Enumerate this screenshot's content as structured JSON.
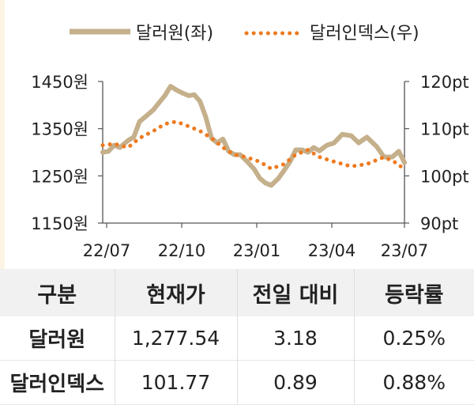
{
  "chart_data": {
    "type": "line",
    "legend_position": "top",
    "x_ticks": [
      "22/07",
      "22/10",
      "23/01",
      "23/04",
      "23/07"
    ],
    "y_left": {
      "ylim": [
        1150,
        1450
      ],
      "ticks": [
        1150,
        1250,
        1350,
        1450
      ],
      "unit": "원"
    },
    "y_right": {
      "ylim": [
        90,
        120
      ],
      "ticks": [
        90,
        100,
        110,
        120
      ],
      "unit": "pt"
    },
    "series": [
      {
        "name": "달러원(좌)",
        "axis": "left",
        "style": "solid",
        "color": "#c5b08c",
        "x": [
          "2022-07-01",
          "2022-07-08",
          "2022-07-15",
          "2022-07-22",
          "2022-08-01",
          "2022-08-08",
          "2022-08-15",
          "2022-08-22",
          "2022-09-01",
          "2022-09-08",
          "2022-09-15",
          "2022-09-22",
          "2022-09-29",
          "2022-10-07",
          "2022-10-14",
          "2022-10-21",
          "2022-10-28",
          "2022-11-04",
          "2022-11-11",
          "2022-11-18",
          "2022-11-25",
          "2022-12-02",
          "2022-12-09",
          "2022-12-16",
          "2022-12-23",
          "2023-01-02",
          "2023-01-09",
          "2023-01-16",
          "2023-01-23",
          "2023-02-01",
          "2023-02-08",
          "2023-02-15",
          "2023-02-22",
          "2023-03-02",
          "2023-03-09",
          "2023-03-16",
          "2023-03-23",
          "2023-04-01",
          "2023-04-10",
          "2023-04-20",
          "2023-05-01",
          "2023-05-10",
          "2023-05-20",
          "2023-06-01",
          "2023-06-10",
          "2023-06-20",
          "2023-06-28",
          "2023-07-05"
        ],
        "values": [
          1300,
          1302,
          1315,
          1310,
          1325,
          1332,
          1365,
          1375,
          1390,
          1405,
          1420,
          1440,
          1432,
          1425,
          1420,
          1422,
          1408,
          1375,
          1330,
          1320,
          1328,
          1302,
          1295,
          1295,
          1283,
          1265,
          1245,
          1235,
          1230,
          1245,
          1262,
          1280,
          1305,
          1305,
          1300,
          1310,
          1303,
          1315,
          1320,
          1338,
          1335,
          1320,
          1332,
          1312,
          1290,
          1290,
          1302,
          1278
        ]
      },
      {
        "name": "달러인덱스(우)",
        "axis": "right",
        "style": "dotted",
        "color": "#ee7a1f",
        "x": [
          "2022-07-01",
          "2022-07-15",
          "2022-08-01",
          "2022-08-15",
          "2022-09-01",
          "2022-09-15",
          "2022-09-29",
          "2022-10-14",
          "2022-10-28",
          "2022-11-11",
          "2022-11-25",
          "2022-12-09",
          "2022-12-23",
          "2023-01-09",
          "2023-01-23",
          "2023-02-08",
          "2023-02-22",
          "2023-03-09",
          "2023-03-23",
          "2023-04-10",
          "2023-05-01",
          "2023-05-20",
          "2023-06-10",
          "2023-06-28",
          "2023-07-05"
        ],
        "values": [
          106.5,
          106.8,
          106.0,
          108.0,
          109.5,
          111.0,
          111.5,
          110.5,
          109.5,
          108.0,
          106.0,
          104.5,
          104.0,
          103.0,
          101.5,
          102.5,
          104.5,
          105.5,
          104.0,
          103.0,
          102.0,
          102.5,
          104.0,
          102.5,
          101.0
        ]
      }
    ]
  },
  "table": {
    "headers": [
      "구분",
      "현재가",
      "전일 대비",
      "등락률"
    ],
    "rows": [
      [
        "달러원",
        "1,277.54",
        "3.18",
        "0.25%"
      ],
      [
        "달러인덱스",
        "101.77",
        "0.89",
        "0.88%"
      ]
    ]
  }
}
